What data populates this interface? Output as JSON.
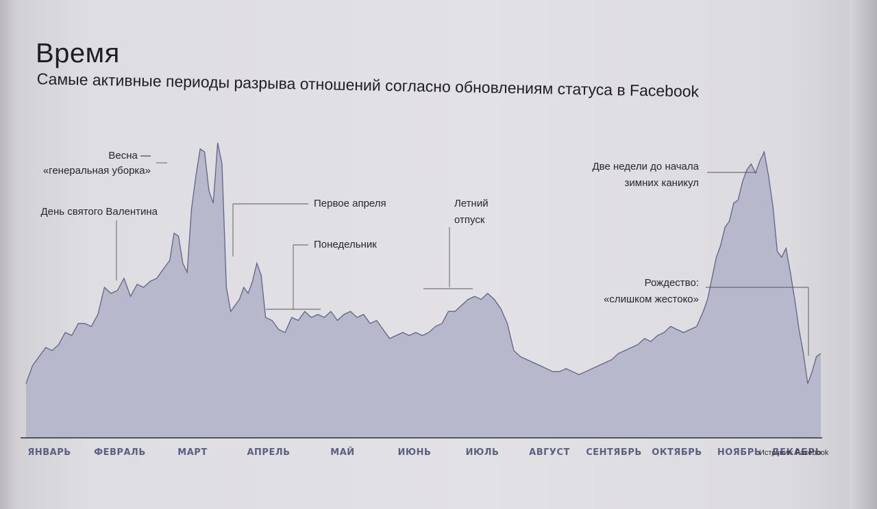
{
  "header": {
    "title": "Время",
    "subtitle": "Самые активные периоды разрыва отношений согласно обновлениям статуса в Facebook"
  },
  "source": "Источник: Facebook",
  "colors": {
    "area_fill": "#b7b8cc",
    "area_stroke": "#5f6384",
    "axis": "#2e2e33",
    "month_label": "#5a5f82"
  },
  "chart_data": {
    "type": "area",
    "title": "Время",
    "subtitle": "Самые активные периоды разрыва отношений согласно обновлениям статуса в Facebook",
    "xlabel": "",
    "ylabel": "",
    "categories": [
      "ЯНВАРЬ",
      "ФЕВРАЛЬ",
      "МАРТ",
      "АПРЕЛЬ",
      "МАЙ",
      "ИЮНЬ",
      "ИЮЛЬ",
      "АВГУСТ",
      "СЕНТЯБРЬ",
      "ОКТЯБРЬ",
      "НОЯБРЬ",
      "ДЕКАБРЬ"
    ],
    "x_range": [
      0,
      365
    ],
    "ylim": [
      0,
      100
    ],
    "grid": false,
    "legend": "none",
    "series": [
      {
        "values": [
          [
            0,
            18
          ],
          [
            3,
            24
          ],
          [
            6,
            27
          ],
          [
            9,
            30
          ],
          [
            12,
            29
          ],
          [
            15,
            31
          ],
          [
            18,
            35
          ],
          [
            21,
            34
          ],
          [
            24,
            38
          ],
          [
            27,
            38
          ],
          [
            30,
            37
          ],
          [
            33,
            41
          ],
          [
            36,
            50
          ],
          [
            39,
            48
          ],
          [
            42,
            49
          ],
          [
            45,
            53
          ],
          [
            48,
            47
          ],
          [
            51,
            51
          ],
          [
            54,
            50
          ],
          [
            57,
            52
          ],
          [
            60,
            53
          ],
          [
            63,
            56
          ],
          [
            66,
            59
          ],
          [
            68,
            68
          ],
          [
            70,
            67
          ],
          [
            72,
            58
          ],
          [
            74,
            55
          ],
          [
            76,
            76
          ],
          [
            78,
            87
          ],
          [
            80,
            96
          ],
          [
            82,
            95
          ],
          [
            84,
            82
          ],
          [
            86,
            78
          ],
          [
            88,
            98
          ],
          [
            90,
            91
          ],
          [
            92,
            50
          ],
          [
            94,
            42
          ],
          [
            96,
            44
          ],
          [
            98,
            46
          ],
          [
            100,
            50
          ],
          [
            102,
            48
          ],
          [
            104,
            52
          ],
          [
            106,
            58
          ],
          [
            108,
            54
          ],
          [
            110,
            40
          ],
          [
            113,
            39
          ],
          [
            116,
            36
          ],
          [
            119,
            35
          ],
          [
            122,
            40
          ],
          [
            125,
            39
          ],
          [
            128,
            42
          ],
          [
            131,
            40
          ],
          [
            134,
            41
          ],
          [
            137,
            40
          ],
          [
            140,
            42
          ],
          [
            143,
            39
          ],
          [
            146,
            41
          ],
          [
            149,
            42
          ],
          [
            152,
            40
          ],
          [
            155,
            41
          ],
          [
            158,
            38
          ],
          [
            161,
            39
          ],
          [
            164,
            36
          ],
          [
            167,
            33
          ],
          [
            170,
            34
          ],
          [
            173,
            35
          ],
          [
            176,
            34
          ],
          [
            179,
            35
          ],
          [
            182,
            34
          ],
          [
            185,
            35
          ],
          [
            188,
            37
          ],
          [
            191,
            38
          ],
          [
            194,
            42
          ],
          [
            197,
            42
          ],
          [
            200,
            44
          ],
          [
            203,
            46
          ],
          [
            206,
            47
          ],
          [
            209,
            46
          ],
          [
            212,
            48
          ],
          [
            215,
            46
          ],
          [
            218,
            43
          ],
          [
            221,
            38
          ],
          [
            224,
            29
          ],
          [
            227,
            27
          ],
          [
            230,
            26
          ],
          [
            233,
            25
          ],
          [
            236,
            24
          ],
          [
            239,
            23
          ],
          [
            242,
            22
          ],
          [
            245,
            22
          ],
          [
            248,
            23
          ],
          [
            251,
            22
          ],
          [
            254,
            21
          ],
          [
            257,
            22
          ],
          [
            260,
            23
          ],
          [
            263,
            24
          ],
          [
            266,
            25
          ],
          [
            269,
            26
          ],
          [
            272,
            28
          ],
          [
            275,
            29
          ],
          [
            278,
            30
          ],
          [
            281,
            31
          ],
          [
            284,
            33
          ],
          [
            287,
            32
          ],
          [
            290,
            34
          ],
          [
            293,
            35
          ],
          [
            296,
            37
          ],
          [
            299,
            36
          ],
          [
            302,
            35
          ],
          [
            305,
            36
          ],
          [
            308,
            37
          ],
          [
            311,
            42
          ],
          [
            313,
            46
          ],
          [
            315,
            53
          ],
          [
            317,
            60
          ],
          [
            319,
            64
          ],
          [
            321,
            70
          ],
          [
            323,
            72
          ],
          [
            325,
            78
          ],
          [
            327,
            79
          ],
          [
            329,
            85
          ],
          [
            331,
            89
          ],
          [
            333,
            91
          ],
          [
            335,
            88
          ],
          [
            337,
            92
          ],
          [
            339,
            95
          ],
          [
            341,
            87
          ],
          [
            343,
            77
          ],
          [
            345,
            62
          ],
          [
            347,
            60
          ],
          [
            349,
            63
          ],
          [
            351,
            55
          ],
          [
            353,
            46
          ],
          [
            355,
            36
          ],
          [
            357,
            28
          ],
          [
            359,
            18
          ],
          [
            361,
            22
          ],
          [
            363,
            27
          ],
          [
            365,
            28
          ]
        ]
      }
    ],
    "annotations": [
      {
        "lines": [
          "День святого Валентина"
        ]
      },
      {
        "lines": [
          "Весна —",
          "«генеральная уборка»"
        ]
      },
      {
        "lines": [
          "Первое апреля"
        ]
      },
      {
        "lines": [
          "Понедельник"
        ]
      },
      {
        "lines": [
          "Летний",
          "отпуск"
        ]
      },
      {
        "lines": [
          "Две недели до начала",
          "зимних каникул"
        ]
      },
      {
        "lines": [
          "Рождество:",
          "«слишком жестоко»"
        ]
      }
    ]
  }
}
